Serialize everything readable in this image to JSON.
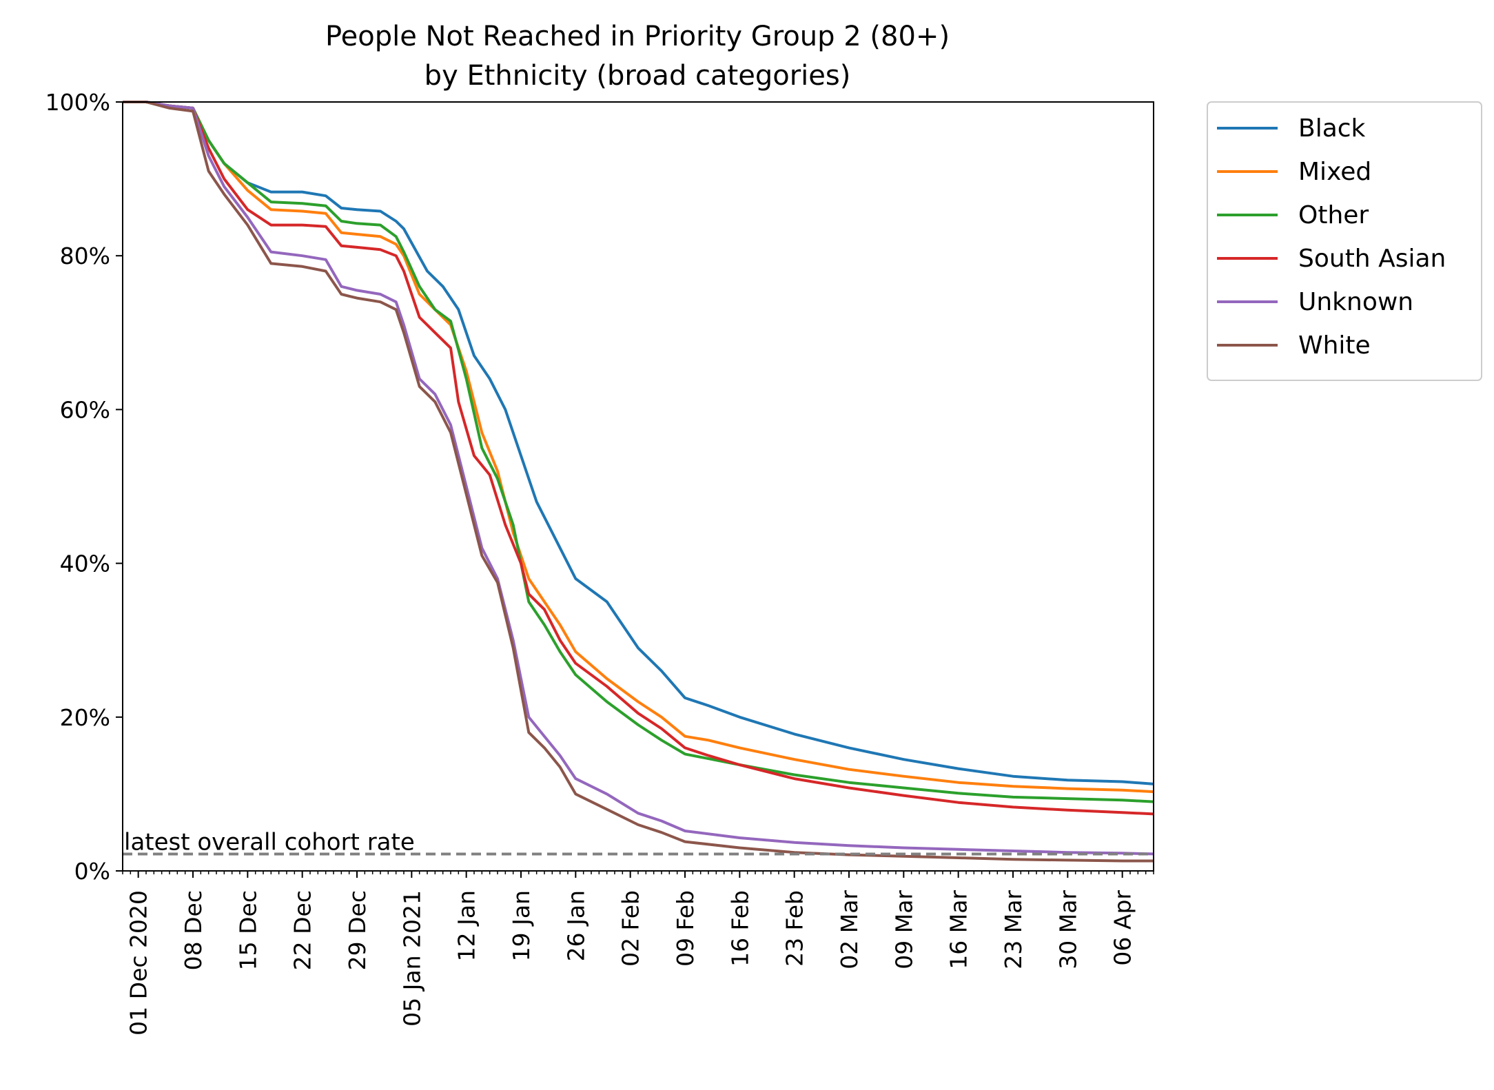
{
  "chart_data": {
    "type": "line",
    "title": [
      "People Not Reached in Priority Group 2 (80+)",
      "by Ethnicity (broad categories)"
    ],
    "xlabel": "",
    "ylabel": "",
    "x_range": [
      "2020-11-29",
      "2021-04-10"
    ],
    "ylim": [
      0,
      100
    ],
    "y_ticks": [
      0,
      20,
      40,
      60,
      80,
      100
    ],
    "y_tick_labels": [
      "0%",
      "20%",
      "40%",
      "60%",
      "80%",
      "100%"
    ],
    "x_ticks": [
      "2020-12-01",
      "2020-12-08",
      "2020-12-15",
      "2020-12-22",
      "2020-12-29",
      "2021-01-05",
      "2021-01-12",
      "2021-01-19",
      "2021-01-26",
      "2021-02-02",
      "2021-02-09",
      "2021-02-16",
      "2021-02-23",
      "2021-03-02",
      "2021-03-09",
      "2021-03-16",
      "2021-03-23",
      "2021-03-30",
      "2021-04-06"
    ],
    "x_tick_labels": [
      "01 Dec 2020",
      "08 Dec",
      "15 Dec",
      "22 Dec",
      "29 Dec",
      "05 Jan 2021",
      "12 Jan",
      "19 Jan",
      "26 Jan",
      "02 Feb",
      "09 Feb",
      "16 Feb",
      "23 Feb",
      "02 Mar",
      "09 Mar",
      "16 Mar",
      "23 Mar",
      "30 Mar",
      "06 Apr"
    ],
    "grid": false,
    "legend_position": "outside-right-top",
    "reference_line": {
      "label": "latest overall cohort rate",
      "y": 2.2,
      "color": "#808080",
      "style": "dashed"
    },
    "series": [
      {
        "name": "Black",
        "color": "#1f77b4",
        "points": [
          [
            "2020-11-29",
            100
          ],
          [
            "2020-12-02",
            100
          ],
          [
            "2020-12-05",
            99.5
          ],
          [
            "2020-12-08",
            99.2
          ],
          [
            "2020-12-10",
            95
          ],
          [
            "2020-12-12",
            92
          ],
          [
            "2020-12-15",
            89.5
          ],
          [
            "2020-12-18",
            88.3
          ],
          [
            "2020-12-22",
            88.3
          ],
          [
            "2020-12-25",
            87.8
          ],
          [
            "2020-12-27",
            86.2
          ],
          [
            "2020-12-29",
            86
          ],
          [
            "2021-01-01",
            85.8
          ],
          [
            "2021-01-03",
            84.5
          ],
          [
            "2021-01-04",
            83.5
          ],
          [
            "2021-01-07",
            78
          ],
          [
            "2021-01-09",
            76
          ],
          [
            "2021-01-11",
            73
          ],
          [
            "2021-01-13",
            67
          ],
          [
            "2021-01-15",
            64
          ],
          [
            "2021-01-17",
            60
          ],
          [
            "2021-01-19",
            54
          ],
          [
            "2021-01-21",
            48
          ],
          [
            "2021-01-24",
            42
          ],
          [
            "2021-01-26",
            38
          ],
          [
            "2021-01-30",
            35
          ],
          [
            "2021-02-03",
            29
          ],
          [
            "2021-02-06",
            26
          ],
          [
            "2021-02-09",
            22.5
          ],
          [
            "2021-02-12",
            21.5
          ],
          [
            "2021-02-16",
            20
          ],
          [
            "2021-02-23",
            17.8
          ],
          [
            "2021-03-02",
            16
          ],
          [
            "2021-03-09",
            14.5
          ],
          [
            "2021-03-16",
            13.3
          ],
          [
            "2021-03-23",
            12.3
          ],
          [
            "2021-03-30",
            11.8
          ],
          [
            "2021-04-06",
            11.6
          ],
          [
            "2021-04-10",
            11.3
          ]
        ]
      },
      {
        "name": "Mixed",
        "color": "#ff7f0e",
        "points": [
          [
            "2020-11-29",
            100
          ],
          [
            "2020-12-02",
            100
          ],
          [
            "2020-12-05",
            99.5
          ],
          [
            "2020-12-08",
            99.2
          ],
          [
            "2020-12-10",
            95
          ],
          [
            "2020-12-12",
            92
          ],
          [
            "2020-12-15",
            88.5
          ],
          [
            "2020-12-18",
            86
          ],
          [
            "2020-12-22",
            85.8
          ],
          [
            "2020-12-25",
            85.5
          ],
          [
            "2020-12-27",
            83
          ],
          [
            "2020-12-29",
            82.8
          ],
          [
            "2021-01-01",
            82.5
          ],
          [
            "2021-01-03",
            81.5
          ],
          [
            "2021-01-04",
            80
          ],
          [
            "2021-01-06",
            75
          ],
          [
            "2021-01-08",
            73
          ],
          [
            "2021-01-10",
            71
          ],
          [
            "2021-01-12",
            65
          ],
          [
            "2021-01-14",
            57
          ],
          [
            "2021-01-16",
            52
          ],
          [
            "2021-01-18",
            44
          ],
          [
            "2021-01-20",
            38
          ],
          [
            "2021-01-22",
            35
          ],
          [
            "2021-01-24",
            32
          ],
          [
            "2021-01-26",
            28.5
          ],
          [
            "2021-01-30",
            25
          ],
          [
            "2021-02-03",
            22
          ],
          [
            "2021-02-06",
            20
          ],
          [
            "2021-02-09",
            17.5
          ],
          [
            "2021-02-12",
            17
          ],
          [
            "2021-02-16",
            16
          ],
          [
            "2021-02-23",
            14.5
          ],
          [
            "2021-03-02",
            13.2
          ],
          [
            "2021-03-09",
            12.3
          ],
          [
            "2021-03-16",
            11.5
          ],
          [
            "2021-03-23",
            11
          ],
          [
            "2021-03-30",
            10.7
          ],
          [
            "2021-04-06",
            10.5
          ],
          [
            "2021-04-10",
            10.3
          ]
        ]
      },
      {
        "name": "Other",
        "color": "#2ca02c",
        "points": [
          [
            "2020-11-29",
            100
          ],
          [
            "2020-12-02",
            100
          ],
          [
            "2020-12-05",
            99.5
          ],
          [
            "2020-12-08",
            99.2
          ],
          [
            "2020-12-10",
            95
          ],
          [
            "2020-12-12",
            92
          ],
          [
            "2020-12-15",
            89.5
          ],
          [
            "2020-12-18",
            87
          ],
          [
            "2020-12-22",
            86.8
          ],
          [
            "2020-12-25",
            86.5
          ],
          [
            "2020-12-27",
            84.5
          ],
          [
            "2020-12-29",
            84.2
          ],
          [
            "2021-01-01",
            84
          ],
          [
            "2021-01-03",
            82.5
          ],
          [
            "2021-01-04",
            80.5
          ],
          [
            "2021-01-06",
            76
          ],
          [
            "2021-01-08",
            73
          ],
          [
            "2021-01-10",
            71.5
          ],
          [
            "2021-01-12",
            64
          ],
          [
            "2021-01-14",
            55
          ],
          [
            "2021-01-16",
            51
          ],
          [
            "2021-01-18",
            45
          ],
          [
            "2021-01-20",
            35
          ],
          [
            "2021-01-22",
            32
          ],
          [
            "2021-01-24",
            28.5
          ],
          [
            "2021-01-26",
            25.5
          ],
          [
            "2021-01-30",
            22
          ],
          [
            "2021-02-03",
            19
          ],
          [
            "2021-02-06",
            17
          ],
          [
            "2021-02-09",
            15.2
          ],
          [
            "2021-02-12",
            14.6
          ],
          [
            "2021-02-16",
            13.8
          ],
          [
            "2021-02-23",
            12.5
          ],
          [
            "2021-03-02",
            11.5
          ],
          [
            "2021-03-09",
            10.8
          ],
          [
            "2021-03-16",
            10.1
          ],
          [
            "2021-03-23",
            9.6
          ],
          [
            "2021-03-30",
            9.4
          ],
          [
            "2021-04-06",
            9.2
          ],
          [
            "2021-04-10",
            9
          ]
        ]
      },
      {
        "name": "South Asian",
        "color": "#d62728",
        "points": [
          [
            "2020-11-29",
            100
          ],
          [
            "2020-12-02",
            100
          ],
          [
            "2020-12-05",
            99.5
          ],
          [
            "2020-12-08",
            99.2
          ],
          [
            "2020-12-10",
            94
          ],
          [
            "2020-12-12",
            90
          ],
          [
            "2020-12-15",
            86
          ],
          [
            "2020-12-18",
            84
          ],
          [
            "2020-12-22",
            84
          ],
          [
            "2020-12-25",
            83.8
          ],
          [
            "2020-12-27",
            81.3
          ],
          [
            "2020-12-29",
            81.1
          ],
          [
            "2021-01-01",
            80.8
          ],
          [
            "2021-01-03",
            80
          ],
          [
            "2021-01-04",
            78
          ],
          [
            "2021-01-06",
            72
          ],
          [
            "2021-01-08",
            70
          ],
          [
            "2021-01-10",
            68
          ],
          [
            "2021-01-11",
            61
          ],
          [
            "2021-01-13",
            54
          ],
          [
            "2021-01-15",
            51.5
          ],
          [
            "2021-01-17",
            45
          ],
          [
            "2021-01-19",
            40
          ],
          [
            "2021-01-20",
            36
          ],
          [
            "2021-01-22",
            34
          ],
          [
            "2021-01-24",
            30
          ],
          [
            "2021-01-26",
            27
          ],
          [
            "2021-01-30",
            24
          ],
          [
            "2021-02-03",
            20.5
          ],
          [
            "2021-02-06",
            18.5
          ],
          [
            "2021-02-09",
            16
          ],
          [
            "2021-02-12",
            15
          ],
          [
            "2021-02-16",
            13.8
          ],
          [
            "2021-02-23",
            12
          ],
          [
            "2021-03-02",
            10.8
          ],
          [
            "2021-03-09",
            9.8
          ],
          [
            "2021-03-16",
            8.9
          ],
          [
            "2021-03-23",
            8.3
          ],
          [
            "2021-03-30",
            7.9
          ],
          [
            "2021-04-06",
            7.6
          ],
          [
            "2021-04-10",
            7.4
          ]
        ]
      },
      {
        "name": "Unknown",
        "color": "#9467bd",
        "points": [
          [
            "2020-11-29",
            100
          ],
          [
            "2020-12-02",
            100
          ],
          [
            "2020-12-05",
            99.5
          ],
          [
            "2020-12-08",
            99.2
          ],
          [
            "2020-12-10",
            93
          ],
          [
            "2020-12-12",
            89
          ],
          [
            "2020-12-15",
            85
          ],
          [
            "2020-12-18",
            80.5
          ],
          [
            "2020-12-22",
            80
          ],
          [
            "2020-12-25",
            79.5
          ],
          [
            "2020-12-27",
            76
          ],
          [
            "2020-12-29",
            75.5
          ],
          [
            "2021-01-01",
            75
          ],
          [
            "2021-01-03",
            74
          ],
          [
            "2021-01-04",
            71
          ],
          [
            "2021-01-06",
            64
          ],
          [
            "2021-01-08",
            62
          ],
          [
            "2021-01-10",
            58
          ],
          [
            "2021-01-12",
            50
          ],
          [
            "2021-01-14",
            42
          ],
          [
            "2021-01-16",
            38
          ],
          [
            "2021-01-18",
            30
          ],
          [
            "2021-01-20",
            20
          ],
          [
            "2021-01-22",
            17.5
          ],
          [
            "2021-01-24",
            15
          ],
          [
            "2021-01-26",
            12
          ],
          [
            "2021-01-30",
            10
          ],
          [
            "2021-02-03",
            7.5
          ],
          [
            "2021-02-06",
            6.5
          ],
          [
            "2021-02-09",
            5.2
          ],
          [
            "2021-02-16",
            4.3
          ],
          [
            "2021-02-23",
            3.7
          ],
          [
            "2021-03-02",
            3.3
          ],
          [
            "2021-03-09",
            3
          ],
          [
            "2021-03-16",
            2.8
          ],
          [
            "2021-03-23",
            2.6
          ],
          [
            "2021-03-30",
            2.4
          ],
          [
            "2021-04-06",
            2.3
          ],
          [
            "2021-04-10",
            2.2
          ]
        ]
      },
      {
        "name": "White",
        "color": "#8c564b",
        "points": [
          [
            "2020-11-29",
            100
          ],
          [
            "2020-12-02",
            100
          ],
          [
            "2020-12-05",
            99.2
          ],
          [
            "2020-12-08",
            98.8
          ],
          [
            "2020-12-10",
            91
          ],
          [
            "2020-12-12",
            88
          ],
          [
            "2020-12-15",
            84
          ],
          [
            "2020-12-18",
            79
          ],
          [
            "2020-12-22",
            78.6
          ],
          [
            "2020-12-25",
            78
          ],
          [
            "2020-12-27",
            75
          ],
          [
            "2020-12-29",
            74.5
          ],
          [
            "2021-01-01",
            74
          ],
          [
            "2021-01-03",
            73
          ],
          [
            "2021-01-04",
            70
          ],
          [
            "2021-01-06",
            63
          ],
          [
            "2021-01-08",
            61
          ],
          [
            "2021-01-10",
            57
          ],
          [
            "2021-01-12",
            49
          ],
          [
            "2021-01-14",
            41
          ],
          [
            "2021-01-16",
            37.5
          ],
          [
            "2021-01-18",
            29
          ],
          [
            "2021-01-20",
            18
          ],
          [
            "2021-01-22",
            16
          ],
          [
            "2021-01-24",
            13.5
          ],
          [
            "2021-01-26",
            10
          ],
          [
            "2021-01-30",
            8
          ],
          [
            "2021-02-03",
            6
          ],
          [
            "2021-02-06",
            5
          ],
          [
            "2021-02-09",
            3.8
          ],
          [
            "2021-02-16",
            3
          ],
          [
            "2021-02-23",
            2.4
          ],
          [
            "2021-03-02",
            2.1
          ],
          [
            "2021-03-09",
            1.9
          ],
          [
            "2021-03-16",
            1.7
          ],
          [
            "2021-03-23",
            1.5
          ],
          [
            "2021-03-30",
            1.4
          ],
          [
            "2021-04-06",
            1.3
          ],
          [
            "2021-04-10",
            1.3
          ]
        ]
      }
    ]
  }
}
